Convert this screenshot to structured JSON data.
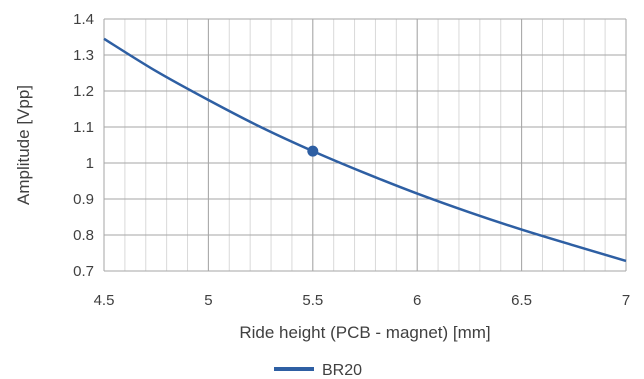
{
  "chart_data": {
    "type": "line",
    "title": "",
    "xlabel": "Ride height (PCB - magnet) [mm]",
    "ylabel": "Amplitude [Vpp]",
    "xlim": [
      4.5,
      7
    ],
    "ylim": [
      0.7,
      1.4
    ],
    "xticks": [
      4.5,
      5,
      5.5,
      6,
      6.5,
      7
    ],
    "xtick_labels": [
      "4.5",
      "5",
      "5.5",
      "6",
      "6.5",
      "7"
    ],
    "yticks": [
      0.7,
      0.8,
      0.9,
      1.0,
      1.1,
      1.2,
      1.3,
      1.4
    ],
    "ytick_labels": [
      "0.7",
      "0.8",
      "0.9",
      "1",
      "1.1",
      "1.2",
      "1.3",
      "1.4"
    ],
    "minor_grid_step_x": 0.1,
    "grid": true,
    "legend_position": "bottom-center",
    "series": [
      {
        "name": "BR20",
        "color": "#2e5fa3",
        "x": [
          4.5,
          4.75,
          5.0,
          5.25,
          5.5,
          5.75,
          6.0,
          6.25,
          6.5,
          6.75,
          7.0
        ],
        "y": [
          1.345,
          1.255,
          1.175,
          1.1,
          1.033,
          0.972,
          0.915,
          0.863,
          0.815,
          0.771,
          0.728
        ]
      }
    ],
    "markers": [
      {
        "x": 5.5,
        "y": 1.033,
        "color": "#2e5fa3"
      }
    ]
  }
}
